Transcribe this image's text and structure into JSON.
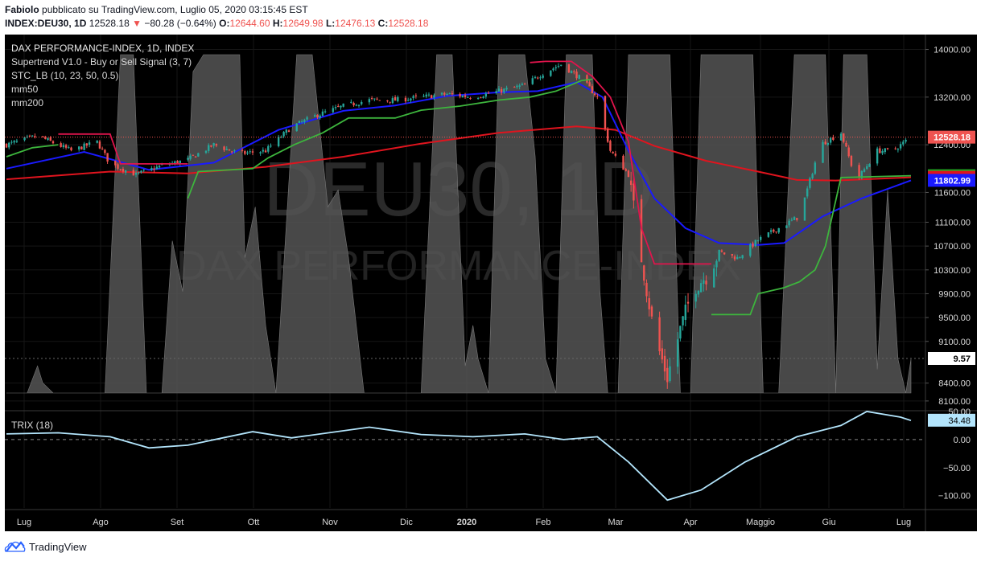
{
  "header": {
    "author": "Fabiolo",
    "published_text": "pubblicato su TradingView.com, Luglio 05, 2020 03:15:45 EST",
    "symbol": "INDEX:DEU30, 1D",
    "last": "12528.18",
    "change": "−80.28 (−0.64%)",
    "o_label": "O:",
    "o_value": "12644.60",
    "h_label": "H:",
    "h_value": "12649.98",
    "l_label": "L:",
    "l_value": "12476.13",
    "c_label": "C:",
    "c_value": "12528.18"
  },
  "legend": {
    "title": "DAX PERFORMANCE-INDEX, 1D, INDEX",
    "supertrend": "Supertrend V1.0 - Buy or Sell Signal (3, 7)",
    "stc": "STC_LB (10, 23, 50, 0.5)",
    "mm50": "mm50",
    "mm200": "mm200",
    "trix": "TRIX (18)"
  },
  "watermark": {
    "symbol": "DEU30, 1D",
    "name": "DAX PERFORMANCE-INDEX"
  },
  "colors": {
    "background": "#000000",
    "up": "#26a69a",
    "down": "#ef5350",
    "mm50": "#1a1aff",
    "mm200": "#e0141e",
    "supertrend_up": "#3db53d",
    "supertrend_down": "#e0144c",
    "stc_fill": "#555555",
    "trix": "#b3e5fc"
  },
  "footer": {
    "brand": "TradingView"
  },
  "chart_data": [
    {
      "type": "candlestick",
      "title": "DAX PERFORMANCE-INDEX, 1D, INDEX",
      "ylim": [
        7950,
        14250
      ],
      "y_ticks": [
        14000,
        13200,
        12400,
        11600,
        11100,
        10700,
        10300,
        9900,
        9500,
        9100,
        8400,
        8100
      ],
      "x_ticks": [
        "Lug",
        "Ago",
        "Set",
        "Ott",
        "Nov",
        "Dic",
        "2020",
        "Feb",
        "Mar",
        "Apr",
        "Maggio",
        "Giu",
        "Lug"
      ],
      "price_labels": [
        {
          "name": "last",
          "value": 12528.18,
          "text": "12528.18",
          "color": "#ef5350"
        },
        {
          "name": "supertrend",
          "value": 11880.96,
          "text": "11880.96",
          "color": "#22a822"
        },
        {
          "name": "mm200",
          "value": 11854.15,
          "text": "11854.15",
          "color": "#e0141e"
        },
        {
          "name": "mm50",
          "value": 11802.99,
          "text": "11802.99",
          "color": "#1a1aff"
        },
        {
          "name": "stc",
          "value": 9.57,
          "text": "9.57",
          "color": "#ffffff"
        }
      ],
      "close_path": [
        [
          0,
          12400
        ],
        [
          12,
          12550
        ],
        [
          25,
          12300
        ],
        [
          35,
          12450
        ],
        [
          40,
          12080
        ],
        [
          50,
          11900
        ],
        [
          60,
          12050
        ],
        [
          70,
          12150
        ],
        [
          80,
          12400
        ],
        [
          90,
          12250
        ],
        [
          100,
          12300
        ],
        [
          110,
          12700
        ],
        [
          120,
          12900
        ],
        [
          130,
          13050
        ],
        [
          140,
          13150
        ],
        [
          150,
          13150
        ],
        [
          160,
          13200
        ],
        [
          170,
          13250
        ],
        [
          180,
          13200
        ],
        [
          190,
          13300
        ],
        [
          200,
          13400
        ],
        [
          207,
          13600
        ],
        [
          214,
          13750
        ],
        [
          222,
          13500
        ],
        [
          228,
          13200
        ],
        [
          233,
          12300
        ],
        [
          240,
          11900
        ],
        [
          245,
          10500
        ],
        [
          250,
          9200
        ],
        [
          255,
          8500
        ],
        [
          260,
          9300
        ],
        [
          265,
          10000
        ],
        [
          270,
          10200
        ],
        [
          275,
          10600
        ],
        [
          282,
          10500
        ],
        [
          290,
          10800
        ],
        [
          298,
          11000
        ],
        [
          306,
          11200
        ],
        [
          314,
          12400
        ],
        [
          322,
          12600
        ],
        [
          328,
          11800
        ],
        [
          336,
          12300
        ],
        [
          342,
          12300
        ],
        [
          349,
          12528
        ]
      ],
      "mm50": [
        [
          0,
          12000
        ],
        [
          30,
          12280
        ],
        [
          55,
          11980
        ],
        [
          80,
          12100
        ],
        [
          105,
          12650
        ],
        [
          130,
          12970
        ],
        [
          150,
          13060
        ],
        [
          170,
          13220
        ],
        [
          190,
          13280
        ],
        [
          205,
          13300
        ],
        [
          220,
          13450
        ],
        [
          230,
          13200
        ],
        [
          240,
          12300
        ],
        [
          250,
          11500
        ],
        [
          262,
          11000
        ],
        [
          275,
          10750
        ],
        [
          290,
          10720
        ],
        [
          300,
          10750
        ],
        [
          315,
          11200
        ],
        [
          330,
          11500
        ],
        [
          349,
          11803
        ]
      ],
      "mm200": [
        [
          0,
          11820
        ],
        [
          40,
          11950
        ],
        [
          70,
          11920
        ],
        [
          100,
          12030
        ],
        [
          130,
          12200
        ],
        [
          160,
          12420
        ],
        [
          190,
          12600
        ],
        [
          220,
          12710
        ],
        [
          235,
          12650
        ],
        [
          250,
          12380
        ],
        [
          270,
          12130
        ],
        [
          290,
          11950
        ],
        [
          305,
          11810
        ],
        [
          320,
          11800
        ],
        [
          349,
          11854
        ]
      ],
      "supertrend": [
        {
          "dir": "up",
          "points": [
            [
              0,
              12200
            ],
            [
              10,
              12350
            ],
            [
              20,
              12400
            ]
          ]
        },
        {
          "dir": "down",
          "points": [
            [
              20,
              12580
            ],
            [
              40,
              12580
            ],
            [
              44,
              12080
            ],
            [
              70,
              12080
            ]
          ]
        },
        {
          "dir": "up",
          "points": [
            [
              70,
              11500
            ],
            [
              74,
              11950
            ],
            [
              95,
              12000
            ],
            [
              101,
              12180
            ],
            [
              111,
              12400
            ],
            [
              122,
              12600
            ],
            [
              132,
              12850
            ],
            [
              150,
              12850
            ],
            [
              160,
              12980
            ],
            [
              175,
              13050
            ],
            [
              190,
              13150
            ],
            [
              202,
              13200
            ],
            [
              212,
              13300
            ],
            [
              222,
              13480
            ],
            [
              226,
              13500
            ]
          ]
        },
        {
          "dir": "down",
          "points": [
            [
              202,
              13780
            ],
            [
              208,
              13800
            ],
            [
              218,
              13800
            ],
            [
              226,
              13550
            ],
            [
              233,
              13200
            ],
            [
              240,
              12450
            ],
            [
              245,
              11000
            ],
            [
              250,
              10400
            ],
            [
              272,
              10400
            ]
          ]
        },
        {
          "dir": "up",
          "points": [
            [
              272,
              9550
            ],
            [
              287,
              9550
            ],
            [
              290,
              9900
            ],
            [
              300,
              10000
            ],
            [
              306,
              10100
            ],
            [
              312,
              10300
            ],
            [
              316,
              10700
            ],
            [
              322,
              11850
            ],
            [
              349,
              11881
            ]
          ]
        }
      ],
      "stc": [
        [
          0,
          0
        ],
        [
          8,
          0
        ],
        [
          12,
          8
        ],
        [
          14,
          3
        ],
        [
          18,
          0
        ],
        [
          38,
          0
        ],
        [
          44,
          100
        ],
        [
          49,
          100
        ],
        [
          54,
          0
        ],
        [
          60,
          0
        ],
        [
          64,
          45
        ],
        [
          68,
          30
        ],
        [
          72,
          95
        ],
        [
          76,
          100
        ],
        [
          90,
          100
        ],
        [
          92,
          40
        ],
        [
          96,
          55
        ],
        [
          100,
          20
        ],
        [
          104,
          0
        ],
        [
          112,
          100
        ],
        [
          118,
          100
        ],
        [
          124,
          55
        ],
        [
          128,
          60
        ],
        [
          132,
          40
        ],
        [
          138,
          0
        ],
        [
          160,
          0
        ],
        [
          166,
          100
        ],
        [
          172,
          100
        ],
        [
          177,
          8
        ],
        [
          180,
          20
        ],
        [
          182,
          10
        ],
        [
          186,
          0
        ],
        [
          190,
          100
        ],
        [
          200,
          100
        ],
        [
          204,
          70
        ],
        [
          208,
          10
        ],
        [
          212,
          0
        ],
        [
          216,
          100
        ],
        [
          226,
          100
        ],
        [
          229,
          30
        ],
        [
          232,
          0
        ],
        [
          236,
          0
        ],
        [
          240,
          100
        ],
        [
          256,
          100
        ],
        [
          260,
          0
        ],
        [
          264,
          0
        ],
        [
          268,
          100
        ],
        [
          288,
          100
        ],
        [
          292,
          0
        ],
        [
          298,
          0
        ],
        [
          304,
          100
        ],
        [
          316,
          100
        ],
        [
          320,
          0
        ],
        [
          323,
          100
        ],
        [
          332,
          100
        ],
        [
          336,
          7
        ],
        [
          340,
          60
        ],
        [
          344,
          10
        ],
        [
          347,
          0
        ],
        [
          349,
          10
        ]
      ]
    },
    {
      "type": "line",
      "title": "TRIX (18)",
      "ylim": [
        -122,
        50
      ],
      "y_ticks": [
        50,
        0,
        -50,
        -100
      ],
      "y_tick_labels": [
        "50.00",
        "0.00",
        "−50.00",
        "−100.00"
      ],
      "last_value": 34.48,
      "last_label": "34.48",
      "points": [
        [
          0,
          10
        ],
        [
          20,
          12
        ],
        [
          40,
          5
        ],
        [
          55,
          -15
        ],
        [
          70,
          -10
        ],
        [
          95,
          14
        ],
        [
          110,
          3
        ],
        [
          140,
          22
        ],
        [
          160,
          9
        ],
        [
          180,
          5
        ],
        [
          200,
          10
        ],
        [
          215,
          0
        ],
        [
          228,
          5
        ],
        [
          240,
          -40
        ],
        [
          255,
          -108
        ],
        [
          268,
          -90
        ],
        [
          285,
          -40
        ],
        [
          305,
          5
        ],
        [
          322,
          25
        ],
        [
          332,
          50
        ],
        [
          345,
          40
        ],
        [
          349,
          34
        ]
      ]
    }
  ]
}
